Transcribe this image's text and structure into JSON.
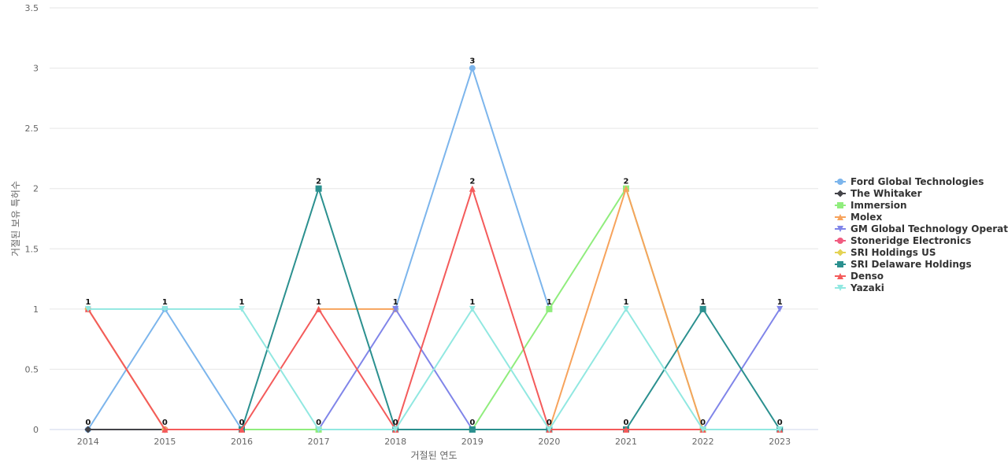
{
  "chart_data": {
    "type": "line",
    "xlabel": "거절된 연도",
    "ylabel": "거절된 보유 특허수",
    "x": [
      "2014",
      "2015",
      "2016",
      "2017",
      "2018",
      "2019",
      "2020",
      "2021",
      "2022",
      "2023"
    ],
    "ylim": [
      0,
      3.5
    ],
    "yticks": [
      "0",
      "0.5",
      "1",
      "1.5",
      "2",
      "2.5",
      "3",
      "3.5"
    ],
    "grid": true,
    "legend_position": "right",
    "series": [
      {
        "name": "Ford Global Technologies",
        "color": "#7cb5ec",
        "marker": "circle",
        "values": [
          0,
          1,
          0,
          null,
          1,
          3,
          1,
          null,
          null,
          null
        ]
      },
      {
        "name": "The Whitaker",
        "color": "#434348",
        "marker": "diamond",
        "values": [
          0,
          0,
          null,
          null,
          null,
          null,
          null,
          null,
          null,
          null
        ]
      },
      {
        "name": "Immersion",
        "color": "#90ed7d",
        "marker": "square",
        "values": [
          null,
          null,
          0,
          0,
          null,
          0,
          1,
          2,
          0,
          null
        ]
      },
      {
        "name": "Molex",
        "color": "#f7a35c",
        "marker": "triangle",
        "values": [
          null,
          null,
          null,
          1,
          1,
          null,
          0,
          2,
          0,
          null
        ]
      },
      {
        "name": "GM Global Technology Operat...",
        "color": "#8085e9",
        "marker": "triangle-down",
        "values": [
          null,
          null,
          null,
          0,
          1,
          0,
          null,
          null,
          0,
          1
        ]
      },
      {
        "name": "Stoneridge Electronics",
        "color": "#f15c80",
        "marker": "circle",
        "values": [
          1,
          0,
          0,
          null,
          null,
          null,
          null,
          null,
          null,
          null
        ]
      },
      {
        "name": "SRI Holdings US",
        "color": "#e4d354",
        "marker": "diamond",
        "values": [
          1,
          0,
          null,
          null,
          null,
          null,
          null,
          null,
          null,
          null
        ]
      },
      {
        "name": "SRI Delaware Holdings",
        "color": "#2b908f",
        "marker": "square",
        "values": [
          null,
          null,
          0,
          2,
          0,
          0,
          0,
          0,
          1,
          0
        ]
      },
      {
        "name": "Denso",
        "color": "#f45b5b",
        "marker": "triangle",
        "values": [
          1,
          0,
          0,
          1,
          0,
          2,
          0,
          0,
          0,
          0
        ]
      },
      {
        "name": "Yazaki",
        "color": "#91e8e1",
        "marker": "triangle-down",
        "values": [
          1,
          1,
          1,
          0,
          0,
          1,
          0,
          1,
          0,
          0
        ]
      }
    ],
    "data_labels": [
      {
        "x": "2014",
        "values": [
          "1",
          "0"
        ]
      },
      {
        "x": "2015",
        "values": [
          "1",
          "0"
        ]
      },
      {
        "x": "2016",
        "values": [
          "1",
          "0"
        ]
      },
      {
        "x": "2017",
        "values": [
          "2",
          "1",
          "0"
        ]
      },
      {
        "x": "2018",
        "values": [
          "1",
          "0"
        ]
      },
      {
        "x": "2019",
        "values": [
          "3",
          "2",
          "1",
          "0"
        ]
      },
      {
        "x": "2020",
        "values": [
          "1",
          "0"
        ]
      },
      {
        "x": "2021",
        "values": [
          "2",
          "1",
          "0"
        ]
      },
      {
        "x": "2022",
        "values": [
          "1",
          "0"
        ]
      },
      {
        "x": "2023",
        "values": [
          "1",
          "0"
        ]
      }
    ]
  }
}
